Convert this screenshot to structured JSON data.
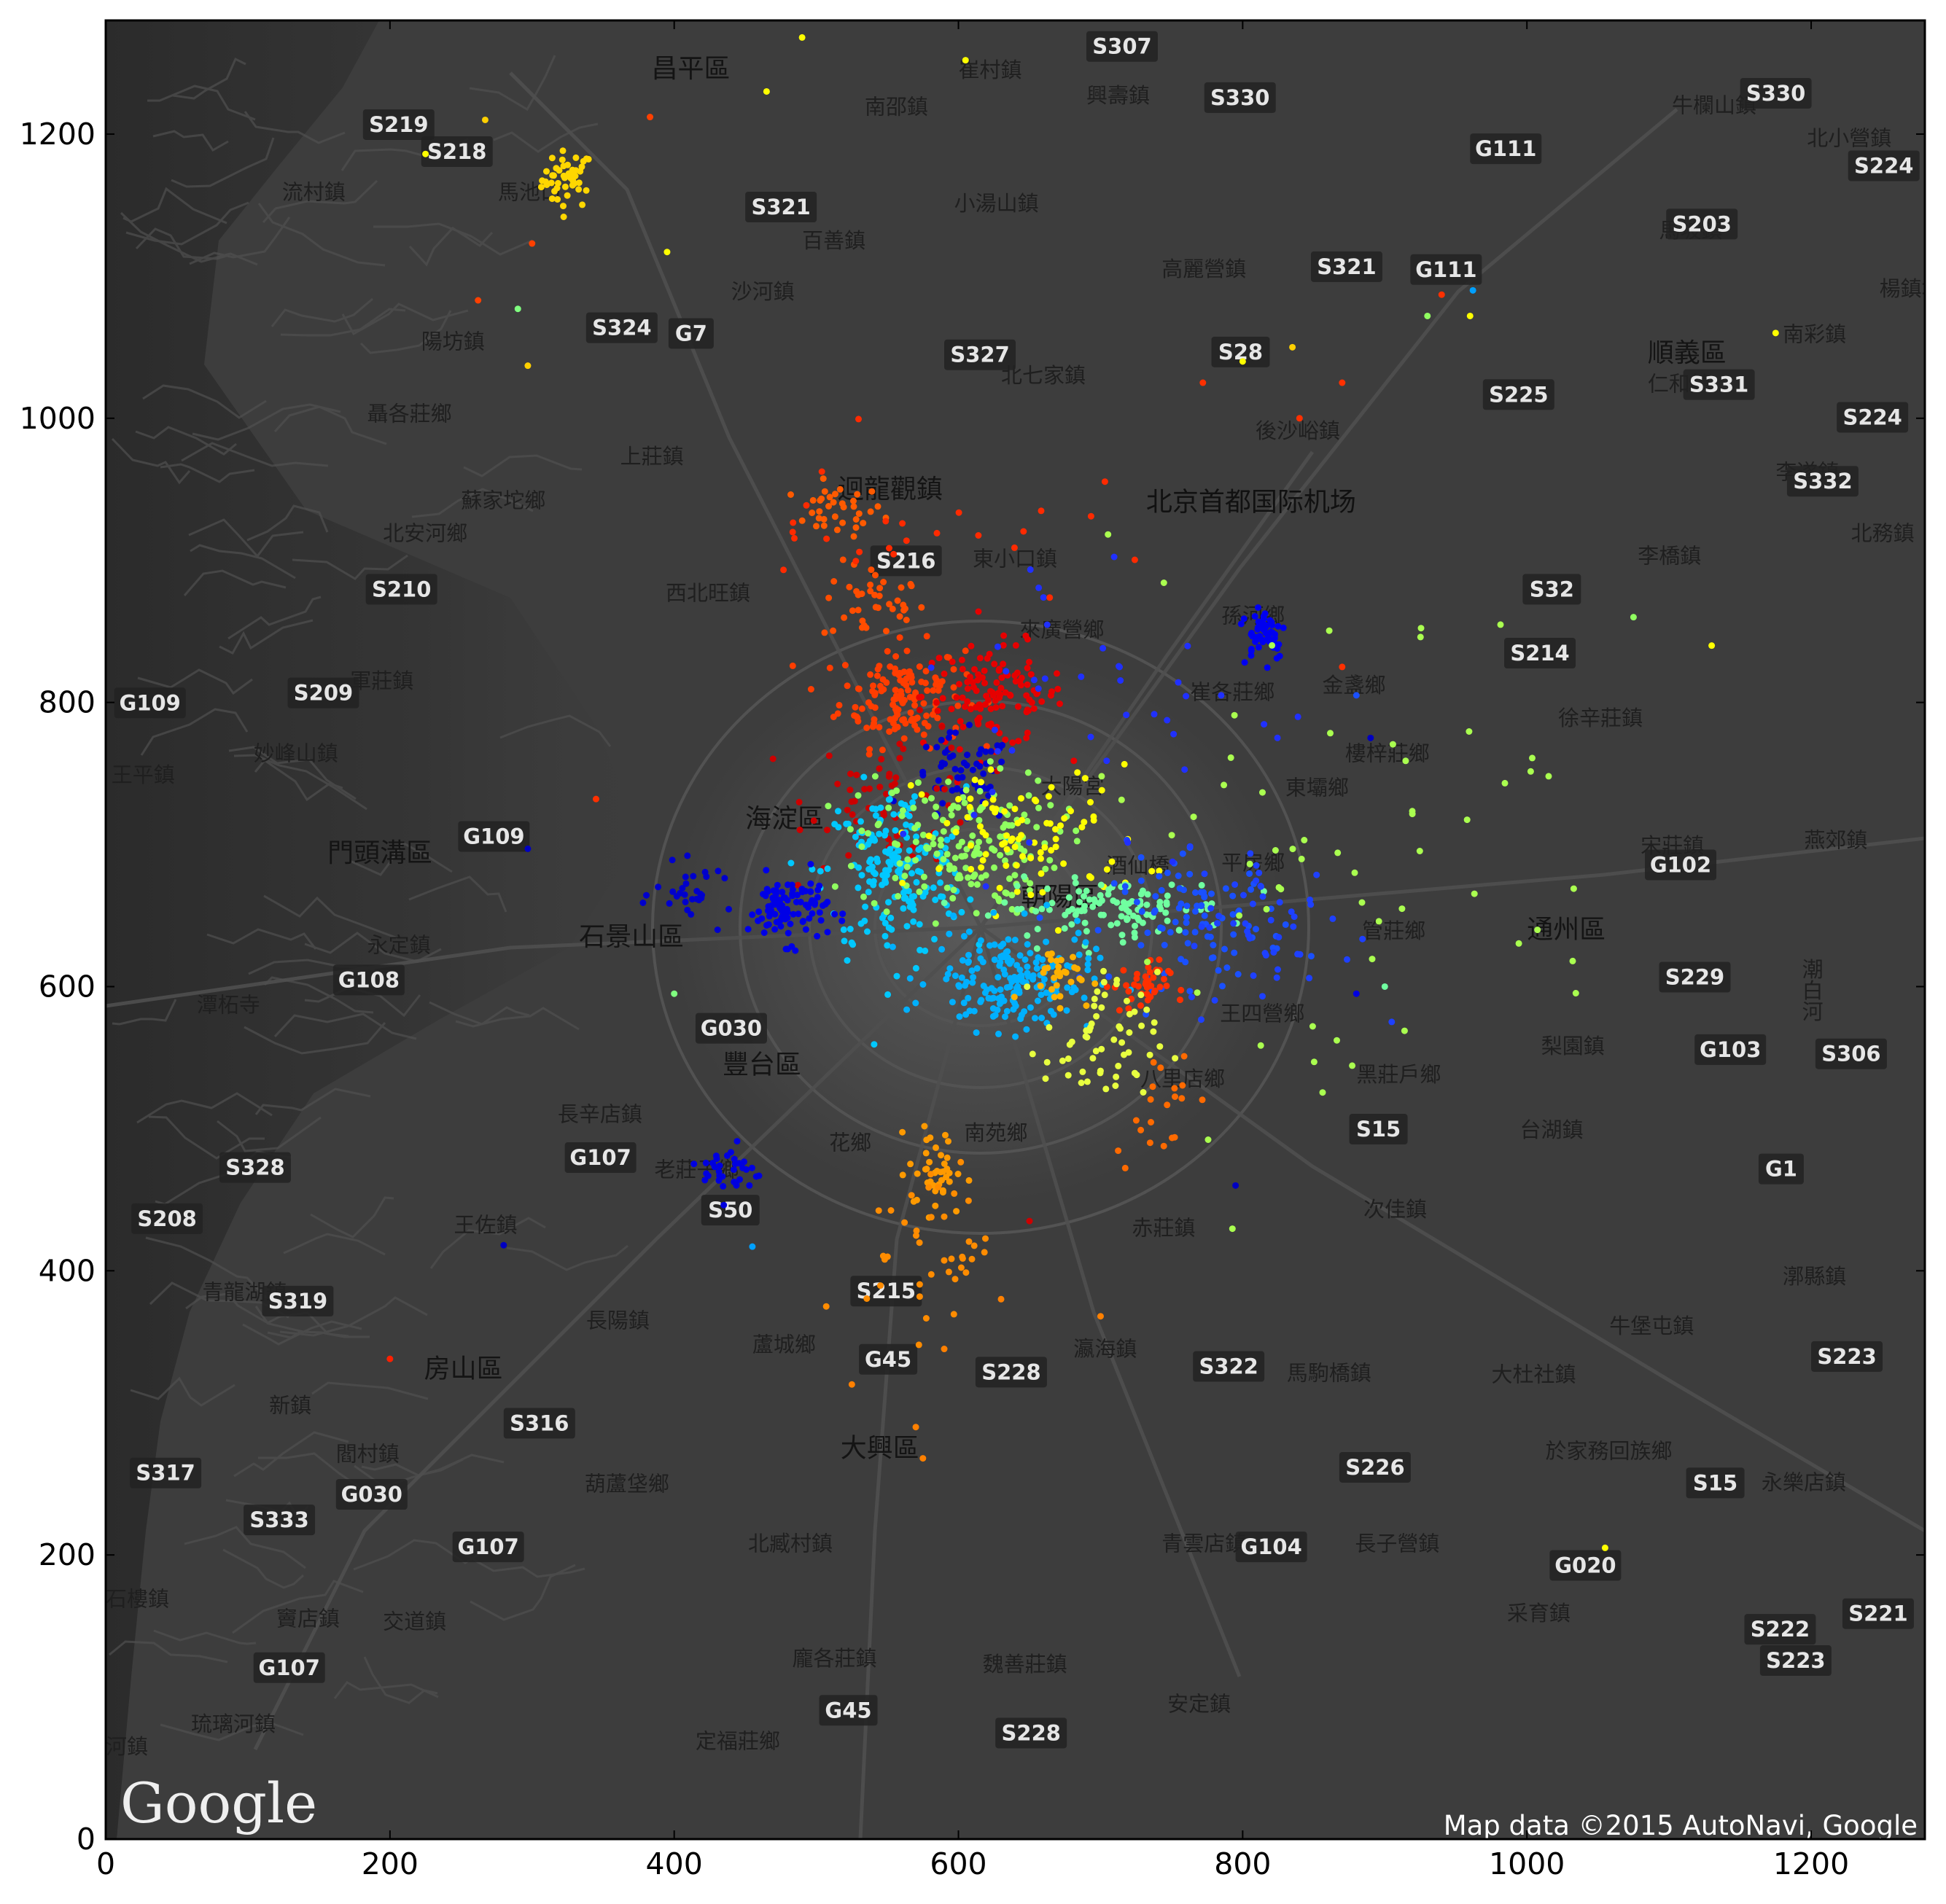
{
  "chart_data": {
    "type": "scatter",
    "title": "",
    "xlabel": "",
    "ylabel": "",
    "xlim": [
      0,
      1280
    ],
    "ylim": [
      0,
      1280
    ],
    "xticks": [
      0,
      200,
      400,
      600,
      800,
      1000,
      1200
    ],
    "yticks": [
      0,
      200,
      400,
      600,
      800,
      1000,
      1200
    ],
    "grid": false,
    "legend": "none",
    "colormap": "jet",
    "background": "grayscale terrain map of Beijing",
    "clusters": [
      {
        "color": "#ffd700",
        "x": 325,
        "y": 1168,
        "sx": 9,
        "sy": 10,
        "n": 45
      },
      {
        "color": "#ff5a00",
        "x": 515,
        "y": 935,
        "sx": 16,
        "sy": 9,
        "n": 35
      },
      {
        "color": "#ff4d00",
        "x": 540,
        "y": 870,
        "sx": 18,
        "sy": 14,
        "n": 40
      },
      {
        "color": "#ff3d00",
        "x": 560,
        "y": 805,
        "sx": 22,
        "sy": 18,
        "n": 140
      },
      {
        "color": "#e60000",
        "x": 625,
        "y": 805,
        "sx": 25,
        "sy": 18,
        "n": 120
      },
      {
        "color": "#0000d0",
        "x": 602,
        "y": 745,
        "sx": 18,
        "sy": 16,
        "n": 60
      },
      {
        "color": "#cc0000",
        "x": 555,
        "y": 735,
        "sx": 30,
        "sy": 25,
        "n": 60
      },
      {
        "color": "#00c8ff",
        "x": 555,
        "y": 680,
        "sx": 25,
        "sy": 30,
        "n": 190
      },
      {
        "color": "#90ff60",
        "x": 600,
        "y": 700,
        "sx": 35,
        "sy": 25,
        "n": 170
      },
      {
        "color": "#ffff00",
        "x": 650,
        "y": 705,
        "sx": 40,
        "sy": 25,
        "n": 90
      },
      {
        "color": "#70ffa0",
        "x": 710,
        "y": 655,
        "sx": 40,
        "sy": 10,
        "n": 110
      },
      {
        "color": "#1a50ff",
        "x": 770,
        "y": 645,
        "sx": 30,
        "sy": 22,
        "n": 90
      },
      {
        "color": "#0000e6",
        "x": 480,
        "y": 655,
        "sx": 14,
        "sy": 12,
        "n": 100
      },
      {
        "color": "#0000cc",
        "x": 415,
        "y": 665,
        "sx": 14,
        "sy": 10,
        "n": 30
      },
      {
        "color": "#00b0ff",
        "x": 638,
        "y": 605,
        "sx": 28,
        "sy": 18,
        "n": 180
      },
      {
        "color": "#ffb000",
        "x": 670,
        "y": 608,
        "sx": 12,
        "sy": 10,
        "n": 30
      },
      {
        "color": "#ff3000",
        "x": 728,
        "y": 600,
        "sx": 10,
        "sy": 9,
        "n": 40
      },
      {
        "color": "#e8ff40",
        "x": 700,
        "y": 560,
        "sx": 20,
        "sy": 25,
        "n": 60
      },
      {
        "color": "#ff9a00",
        "x": 585,
        "y": 470,
        "sx": 10,
        "sy": 15,
        "n": 40
      },
      {
        "color": "#ff8c00",
        "x": 580,
        "y": 420,
        "sx": 22,
        "sy": 30,
        "n": 40
      },
      {
        "color": "#0000e0",
        "x": 440,
        "y": 470,
        "sx": 10,
        "sy": 10,
        "n": 35
      },
      {
        "color": "#0000f0",
        "x": 815,
        "y": 850,
        "sx": 8,
        "sy": 10,
        "n": 55
      },
      {
        "color": "#1e40ff",
        "x": 820,
        "y": 640,
        "sx": 30,
        "sy": 30,
        "n": 50
      },
      {
        "color": "#2030ff",
        "x": 700,
        "y": 800,
        "sx": 80,
        "sy": 60,
        "n": 40
      },
      {
        "color": "#ff2a00",
        "x": 560,
        "y": 925,
        "sx": 60,
        "sy": 30,
        "n": 25
      },
      {
        "color": "#aaff50",
        "x": 860,
        "y": 700,
        "sx": 110,
        "sy": 100,
        "n": 60
      },
      {
        "color": "#ff6a00",
        "x": 740,
        "y": 520,
        "sx": 15,
        "sy": 20,
        "n": 20
      }
    ],
    "outliers": [
      {
        "x": 490,
        "y": 1268,
        "color": "#ffff00"
      },
      {
        "x": 605,
        "y": 1252,
        "color": "#ffff00"
      },
      {
        "x": 465,
        "y": 1230,
        "color": "#ffff00"
      },
      {
        "x": 383,
        "y": 1212,
        "color": "#ff4000"
      },
      {
        "x": 267,
        "y": 1210,
        "color": "#ffd000"
      },
      {
        "x": 225,
        "y": 1186,
        "color": "#ffff00"
      },
      {
        "x": 300,
        "y": 1123,
        "color": "#ff4000"
      },
      {
        "x": 395,
        "y": 1117,
        "color": "#ffff00"
      },
      {
        "x": 262,
        "y": 1083,
        "color": "#ff4000"
      },
      {
        "x": 290,
        "y": 1077,
        "color": "#80ff80"
      },
      {
        "x": 297,
        "y": 1037,
        "color": "#ffd000"
      },
      {
        "x": 930,
        "y": 1072,
        "color": "#90ff60"
      },
      {
        "x": 940,
        "y": 1087,
        "color": "#ff3000"
      },
      {
        "x": 962,
        "y": 1090,
        "color": "#00a0ff"
      },
      {
        "x": 960,
        "y": 1072,
        "color": "#ffff00"
      },
      {
        "x": 1175,
        "y": 1060,
        "color": "#ffff00"
      },
      {
        "x": 835,
        "y": 1050,
        "color": "#ffd000"
      },
      {
        "x": 800,
        "y": 1040,
        "color": "#ffff00"
      },
      {
        "x": 772,
        "y": 1025,
        "color": "#ff3000"
      },
      {
        "x": 870,
        "y": 1025,
        "color": "#ff3000"
      },
      {
        "x": 840,
        "y": 1000,
        "color": "#ff3000"
      },
      {
        "x": 1075,
        "y": 860,
        "color": "#90ff60"
      },
      {
        "x": 1130,
        "y": 840,
        "color": "#ffff00"
      },
      {
        "x": 1055,
        "y": 205,
        "color": "#ffff00"
      },
      {
        "x": 200,
        "y": 338,
        "color": "#ff2000"
      },
      {
        "x": 280,
        "y": 418,
        "color": "#0000c0"
      },
      {
        "x": 345,
        "y": 732,
        "color": "#ff3000"
      },
      {
        "x": 297,
        "y": 697,
        "color": "#0000c0"
      },
      {
        "x": 400,
        "y": 595,
        "color": "#80ff80"
      },
      {
        "x": 455,
        "y": 417,
        "color": "#00a0ff"
      },
      {
        "x": 570,
        "y": 290,
        "color": "#ff8000"
      },
      {
        "x": 575,
        "y": 268,
        "color": "#ff8000"
      },
      {
        "x": 590,
        "y": 345,
        "color": "#ff8000"
      },
      {
        "x": 630,
        "y": 380,
        "color": "#ff8000"
      },
      {
        "x": 700,
        "y": 368,
        "color": "#ff8000"
      },
      {
        "x": 525,
        "y": 320,
        "color": "#ff8000"
      },
      {
        "x": 795,
        "y": 460,
        "color": "#0000c0"
      },
      {
        "x": 650,
        "y": 435,
        "color": "#cc0000"
      },
      {
        "x": 900,
        "y": 600,
        "color": "#70ffa0"
      },
      {
        "x": 880,
        "y": 595,
        "color": "#0000e0"
      },
      {
        "x": 870,
        "y": 825,
        "color": "#ff3000"
      },
      {
        "x": 880,
        "y": 805,
        "color": "#1a50ff"
      },
      {
        "x": 890,
        "y": 775,
        "color": "#0000c0"
      }
    ]
  },
  "map": {
    "places": [
      {
        "label": "昌平區",
        "x": 384,
        "y": 1240,
        "major": true
      },
      {
        "label": "崔村鎮",
        "x": 600,
        "y": 1240
      },
      {
        "label": "興壽鎮",
        "x": 690,
        "y": 1222
      },
      {
        "label": "南邵鎮",
        "x": 534,
        "y": 1214
      },
      {
        "label": "牛欄山鎮",
        "x": 1102,
        "y": 1215
      },
      {
        "label": "北小營鎮",
        "x": 1197,
        "y": 1192
      },
      {
        "label": "流村鎮",
        "x": 124,
        "y": 1154
      },
      {
        "label": "馬池口",
        "x": 276,
        "y": 1154
      },
      {
        "label": "小湯山鎮",
        "x": 597,
        "y": 1146
      },
      {
        "label": "百善鎮",
        "x": 490,
        "y": 1120
      },
      {
        "label": "馬坡鎮",
        "x": 1093,
        "y": 1127
      },
      {
        "label": "高麗營鎮",
        "x": 743,
        "y": 1100
      },
      {
        "label": "沙河鎮",
        "x": 440,
        "y": 1084
      },
      {
        "label": "楊鎮地",
        "x": 1248,
        "y": 1086
      },
      {
        "label": "陽坊鎮",
        "x": 222,
        "y": 1049
      },
      {
        "label": "順義區",
        "x": 1085,
        "y": 1040,
        "major": true
      },
      {
        "label": "南彩鎮",
        "x": 1180,
        "y": 1054
      },
      {
        "label": "仁和鎮",
        "x": 1085,
        "y": 1019
      },
      {
        "label": "北七家鎮",
        "x": 630,
        "y": 1025
      },
      {
        "label": "聶各莊鄉",
        "x": 184,
        "y": 998
      },
      {
        "label": "後沙峪鎮",
        "x": 809,
        "y": 986
      },
      {
        "label": "上莊鎮",
        "x": 362,
        "y": 968
      },
      {
        "label": "李遂鎮",
        "x": 1175,
        "y": 957
      },
      {
        "label": "蘇家坨鄉",
        "x": 250,
        "y": 937
      },
      {
        "label": "迴龍觀鎮",
        "x": 515,
        "y": 944,
        "major": true
      },
      {
        "label": "北京首都国际机场",
        "x": 732,
        "y": 935,
        "airport": true
      },
      {
        "label": "北安河鄉",
        "x": 195,
        "y": 914
      },
      {
        "label": "北務鎮",
        "x": 1228,
        "y": 914
      },
      {
        "label": "西北旺鎮",
        "x": 394,
        "y": 872
      },
      {
        "label": "東小口鎮",
        "x": 610,
        "y": 896
      },
      {
        "label": "李橋鎮",
        "x": 1078,
        "y": 898
      },
      {
        "label": "孫河鄉",
        "x": 785,
        "y": 856
      },
      {
        "label": "來廣營鄉",
        "x": 643,
        "y": 846
      },
      {
        "label": "崔各莊鄉",
        "x": 763,
        "y": 802
      },
      {
        "label": "金盞鄉",
        "x": 856,
        "y": 807
      },
      {
        "label": "軍莊鎮",
        "x": 172,
        "y": 810
      },
      {
        "label": "徐辛莊鎮",
        "x": 1022,
        "y": 784
      },
      {
        "label": "妙峰山鎮",
        "x": 104,
        "y": 759
      },
      {
        "label": "樓梓莊鄉",
        "x": 872,
        "y": 759
      },
      {
        "label": "王平鎮",
        "x": 4,
        "y": 744
      },
      {
        "label": "大陽宮",
        "x": 658,
        "y": 736
      },
      {
        "label": "東壩鄉",
        "x": 830,
        "y": 735
      },
      {
        "label": "海淀區",
        "x": 450,
        "y": 712,
        "major": true
      },
      {
        "label": "門頭溝區",
        "x": 156,
        "y": 688,
        "major": true
      },
      {
        "label": "宋莊鎮",
        "x": 1080,
        "y": 694
      },
      {
        "label": "燕郊鎮",
        "x": 1195,
        "y": 698
      },
      {
        "label": "平房鄉",
        "x": 785,
        "y": 682
      },
      {
        "label": "酒仙橋",
        "x": 704,
        "y": 680
      },
      {
        "label": "朝陽區",
        "x": 644,
        "y": 657,
        "major": true
      },
      {
        "label": "管莊鄉",
        "x": 884,
        "y": 634
      },
      {
        "label": "通州區",
        "x": 1000,
        "y": 634,
        "major": true
      },
      {
        "label": "石景山區",
        "x": 333,
        "y": 629,
        "major": true
      },
      {
        "label": "永定鎮",
        "x": 184,
        "y": 624
      },
      {
        "label": "潭柘寺",
        "x": 64,
        "y": 582
      },
      {
        "label": "王四營鄉",
        "x": 784,
        "y": 576
      },
      {
        "label": "梨園鎮",
        "x": 1010,
        "y": 553
      },
      {
        "label": "豐台區",
        "x": 434,
        "y": 539,
        "major": true
      },
      {
        "label": "黑莊戶鄉",
        "x": 880,
        "y": 533
      },
      {
        "label": "八里店鄉",
        "x": 728,
        "y": 530
      },
      {
        "label": "長辛店鎮",
        "x": 318,
        "y": 505
      },
      {
        "label": "南苑鄉",
        "x": 604,
        "y": 492
      },
      {
        "label": "台湖鎮",
        "x": 995,
        "y": 494
      },
      {
        "label": "花鄉",
        "x": 509,
        "y": 485
      },
      {
        "label": "老莊子鄉",
        "x": 386,
        "y": 466
      },
      {
        "label": "次佳鎮",
        "x": 885,
        "y": 438
      },
      {
        "label": "王佐鎮",
        "x": 245,
        "y": 427
      },
      {
        "label": "赤莊鎮",
        "x": 722,
        "y": 425
      },
      {
        "label": "青龍湖鎮",
        "x": 68,
        "y": 380
      },
      {
        "label": "漷縣鎮",
        "x": 1180,
        "y": 391
      },
      {
        "label": "長陽鎮",
        "x": 338,
        "y": 360
      },
      {
        "label": "牛堡屯鎮",
        "x": 1058,
        "y": 356
      },
      {
        "label": "房山區",
        "x": 224,
        "y": 325,
        "major": true
      },
      {
        "label": "瀛海鎮",
        "x": 681,
        "y": 340
      },
      {
        "label": "蘆城鄉",
        "x": 455,
        "y": 343
      },
      {
        "label": "馬駒橋鎮",
        "x": 831,
        "y": 323
      },
      {
        "label": "大杜社鎮",
        "x": 975,
        "y": 322
      },
      {
        "label": "新鎮",
        "x": 115,
        "y": 300
      },
      {
        "label": "大興區",
        "x": 517,
        "y": 269,
        "major": true
      },
      {
        "label": "閻村鎮",
        "x": 162,
        "y": 266
      },
      {
        "label": "於家務回族鄉",
        "x": 1013,
        "y": 268
      },
      {
        "label": "葫蘆垡鄉",
        "x": 337,
        "y": 245
      },
      {
        "label": "永樂店鎮",
        "x": 1165,
        "y": 246
      },
      {
        "label": "北臧村鎮",
        "x": 452,
        "y": 203
      },
      {
        "label": "青雲店鎮",
        "x": 743,
        "y": 203
      },
      {
        "label": "長子營鎮",
        "x": 879,
        "y": 203
      },
      {
        "label": "石樓鎮",
        "x": 0,
        "y": 164
      },
      {
        "label": "竇店鎮",
        "x": 120,
        "y": 150
      },
      {
        "label": "交道鎮",
        "x": 195,
        "y": 148
      },
      {
        "label": "采育鎮",
        "x": 986,
        "y": 154
      },
      {
        "label": "龐各莊鎮",
        "x": 483,
        "y": 122
      },
      {
        "label": "魏善莊鎮",
        "x": 617,
        "y": 118
      },
      {
        "label": "安定鎮",
        "x": 747,
        "y": 90
      },
      {
        "label": "琉璃河鎮",
        "x": 60,
        "y": 76
      },
      {
        "label": "河鎮",
        "x": 0,
        "y": 60
      },
      {
        "label": "定福莊鄉",
        "x": 415,
        "y": 64
      },
      {
        "label": "潮白河",
        "x": 1200,
        "y": 620,
        "vertical": true
      }
    ],
    "roads": [
      {
        "label": "S307",
        "x": 690,
        "y": 1255
      },
      {
        "label": "S330",
        "x": 773,
        "y": 1219
      },
      {
        "label": "S330",
        "x": 1150,
        "y": 1222
      },
      {
        "label": "S219",
        "x": 181,
        "y": 1200
      },
      {
        "label": "S218",
        "x": 222,
        "y": 1181
      },
      {
        "label": "G111",
        "x": 960,
        "y": 1183
      },
      {
        "label": "S224",
        "x": 1226,
        "y": 1171
      },
      {
        "label": "S321",
        "x": 450,
        "y": 1142
      },
      {
        "label": "S203",
        "x": 1098,
        "y": 1130
      },
      {
        "label": "S321",
        "x": 848,
        "y": 1100
      },
      {
        "label": "G111",
        "x": 918,
        "y": 1098
      },
      {
        "label": "S324",
        "x": 338,
        "y": 1057
      },
      {
        "label": "G7",
        "x": 396,
        "y": 1053
      },
      {
        "label": "S327",
        "x": 590,
        "y": 1038
      },
      {
        "label": "S28",
        "x": 778,
        "y": 1040
      },
      {
        "label": "S331",
        "x": 1110,
        "y": 1017
      },
      {
        "label": "S225",
        "x": 969,
        "y": 1010
      },
      {
        "label": "S224",
        "x": 1218,
        "y": 994
      },
      {
        "label": "S332",
        "x": 1183,
        "y": 949
      },
      {
        "label": "S216",
        "x": 538,
        "y": 893
      },
      {
        "label": "S32",
        "x": 997,
        "y": 873
      },
      {
        "label": "S210",
        "x": 183,
        "y": 873
      },
      {
        "label": "S214",
        "x": 984,
        "y": 828
      },
      {
        "label": "S209",
        "x": 128,
        "y": 800
      },
      {
        "label": "G109",
        "x": 6,
        "y": 793
      },
      {
        "label": "G109",
        "x": 248,
        "y": 699
      },
      {
        "label": "G102",
        "x": 1083,
        "y": 679
      },
      {
        "label": "S229",
        "x": 1093,
        "y": 600
      },
      {
        "label": "G108",
        "x": 160,
        "y": 598
      },
      {
        "label": "G030",
        "x": 415,
        "y": 564
      },
      {
        "label": "G103",
        "x": 1118,
        "y": 549
      },
      {
        "label": "S306",
        "x": 1203,
        "y": 546
      },
      {
        "label": "S15",
        "x": 875,
        "y": 493
      },
      {
        "label": "G107",
        "x": 323,
        "y": 473
      },
      {
        "label": "G1",
        "x": 1163,
        "y": 465
      },
      {
        "label": "S328",
        "x": 80,
        "y": 466
      },
      {
        "label": "S50",
        "x": 419,
        "y": 436
      },
      {
        "label": "S208",
        "x": 18,
        "y": 430
      },
      {
        "label": "S215",
        "x": 524,
        "y": 379
      },
      {
        "label": "S319",
        "x": 110,
        "y": 372
      },
      {
        "label": "G45",
        "x": 530,
        "y": 331
      },
      {
        "label": "S228",
        "x": 612,
        "y": 322
      },
      {
        "label": "S322",
        "x": 765,
        "y": 326
      },
      {
        "label": "S223",
        "x": 1200,
        "y": 333
      },
      {
        "label": "S316",
        "x": 280,
        "y": 286
      },
      {
        "label": "S226",
        "x": 868,
        "y": 255
      },
      {
        "label": "S317",
        "x": 17,
        "y": 251
      },
      {
        "label": "S15",
        "x": 1112,
        "y": 244
      },
      {
        "label": "G030",
        "x": 162,
        "y": 236
      },
      {
        "label": "S333",
        "x": 97,
        "y": 218
      },
      {
        "label": "G107",
        "x": 244,
        "y": 199
      },
      {
        "label": "G104",
        "x": 795,
        "y": 199
      },
      {
        "label": "G020",
        "x": 1016,
        "y": 186
      },
      {
        "label": "S222",
        "x": 1153,
        "y": 141
      },
      {
        "label": "S221",
        "x": 1222,
        "y": 152
      },
      {
        "label": "S223",
        "x": 1164,
        "y": 119
      },
      {
        "label": "G107",
        "x": 104,
        "y": 114
      },
      {
        "label": "G45",
        "x": 502,
        "y": 84
      },
      {
        "label": "S228",
        "x": 626,
        "y": 68
      }
    ],
    "google_logo": "Google",
    "attribution": "Map data ©2015 AutoNavi, Google"
  }
}
